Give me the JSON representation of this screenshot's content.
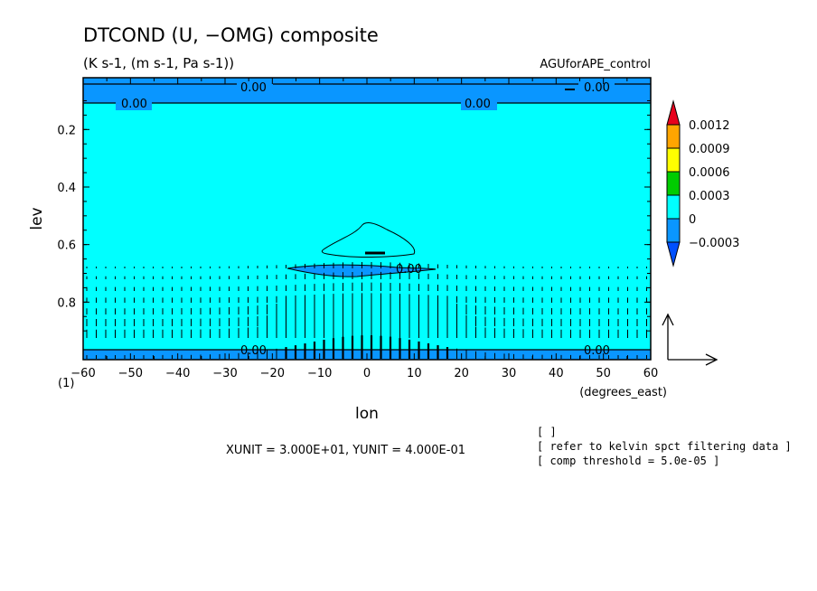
{
  "chart_data": {
    "type": "contour",
    "title": "DTCOND (U, −OMG) composite",
    "subtitle": "(K s-1, (m s-1, Pa s-1))",
    "experiment": "AGUforAPE_control",
    "xlabel": "lon",
    "xunits": "(degrees_east)",
    "ylabel": "lev",
    "y_extra_tick": "(1)",
    "xlim": [
      -60,
      60
    ],
    "ylim": [
      1.0,
      0.02
    ],
    "xticks": [
      -60,
      -50,
      -40,
      -30,
      -20,
      -10,
      0,
      10,
      20,
      30,
      40,
      50,
      60
    ],
    "xtick_labels": [
      "−60",
      "−50",
      "−40",
      "−30",
      "−20",
      "−10",
      "0",
      "10",
      "20",
      "30",
      "40",
      "50",
      "60"
    ],
    "yticks": [
      0.2,
      0.4,
      0.6,
      0.8
    ],
    "ytick_labels": [
      "0.2",
      "0.4",
      "0.6",
      "0.8"
    ],
    "colorbar": {
      "levels": [
        "0.0012",
        "0.0009",
        "0.0006",
        "0.0003",
        "0",
        "−0.0003"
      ],
      "colors": [
        "#e8001c",
        "#ffa500",
        "#ffff00",
        "#00cc00",
        "#00ffff",
        "#0a96ff",
        "#0050ff"
      ]
    },
    "contour_labels": [
      "0.00",
      "0.00",
      "0.00",
      "0.00",
      "0.00",
      "0.00",
      "0.00"
    ],
    "vector_unit": {
      "xunit": "3.000E+01",
      "yunit": "4.000E-01"
    },
    "vector_unit_text": "XUNIT = 3.000E+01, YUNIT = 4.000E-01",
    "notes": [
      "[  ]",
      "[ refer to kelvin spct filtering data ]",
      "[ comp threshold = 5.0e-05 ]"
    ],
    "colors": {
      "background": "#00ffff",
      "negative": "#0a96ff"
    }
  }
}
